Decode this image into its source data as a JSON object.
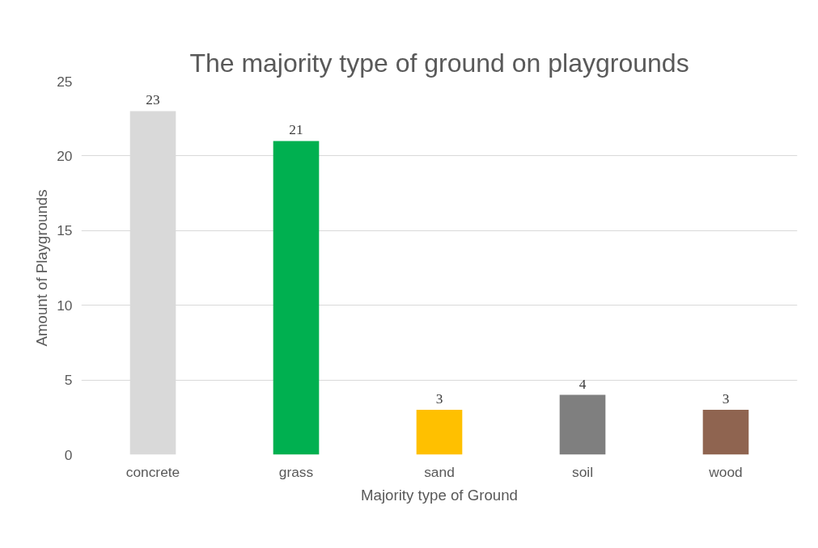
{
  "chart_data": {
    "type": "bar",
    "title": "The majority type of ground on playgrounds",
    "xlabel": "Majority type of Ground",
    "ylabel": "Amount of Playgrounds",
    "categories": [
      "concrete",
      "grass",
      "sand",
      "soil",
      "wood"
    ],
    "values": [
      23,
      21,
      3,
      4,
      3
    ],
    "colors": [
      "#d9d9d9",
      "#00b050",
      "#ffc000",
      "#7f7f7f",
      "#8f6450"
    ],
    "ylim": [
      0,
      25
    ],
    "yticks": [
      0,
      5,
      10,
      15,
      20,
      25
    ],
    "grid": "y",
    "data_labels": true
  }
}
